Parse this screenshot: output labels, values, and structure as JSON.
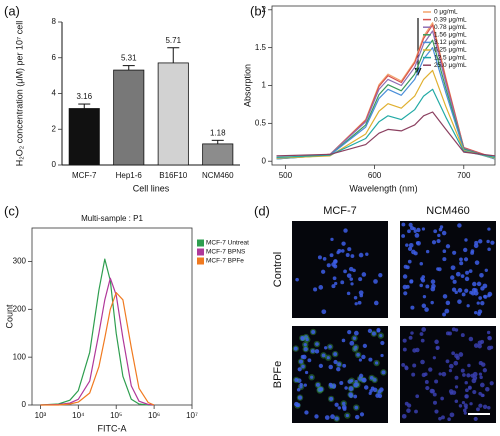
{
  "chart_data": [
    {
      "type": "bar",
      "panel_label": "(a)",
      "categories": [
        "MCF-7",
        "Hep1-6",
        "B16F10",
        "NCM460"
      ],
      "values": [
        3.16,
        5.31,
        5.71,
        1.18
      ],
      "errors": [
        0.25,
        0.25,
        0.85,
        0.2
      ],
      "colors": [
        "#111111",
        "#787878",
        "#d2d2d2",
        "#8c8c8c"
      ],
      "ylim": [
        0,
        8
      ],
      "yticks": [
        0,
        2,
        4,
        6,
        8
      ],
      "xlabel": "Cell lines",
      "ylabel": "H₂O₂ concentration (μM) per 10⁷ cell",
      "frame": "axes"
    },
    {
      "type": "line",
      "panel_label": "(b)",
      "x": [
        490,
        550,
        590,
        605,
        615,
        630,
        645,
        655,
        665,
        680,
        700,
        735
      ],
      "series": [
        {
          "name": "0 μg/mL",
          "color": "#f2a36b",
          "values": [
            0.04,
            0.09,
            0.55,
            1.01,
            1.15,
            1.06,
            1.32,
            1.65,
            1.83,
            1.1,
            0.18,
            0.04
          ]
        },
        {
          "name": "0.39 μg/mL",
          "color": "#d9534f",
          "values": [
            0.04,
            0.09,
            0.54,
            0.99,
            1.13,
            1.04,
            1.3,
            1.62,
            1.8,
            1.08,
            0.18,
            0.04
          ]
        },
        {
          "name": "0.78 μg/mL",
          "color": "#8e6fb5",
          "values": [
            0.03,
            0.09,
            0.52,
            0.95,
            1.08,
            1.0,
            1.24,
            1.55,
            1.72,
            1.03,
            0.17,
            0.03
          ]
        },
        {
          "name": "1.56 μg/mL",
          "color": "#3a9a5b",
          "values": [
            0.03,
            0.08,
            0.48,
            0.88,
            1.01,
            0.93,
            1.15,
            1.44,
            1.6,
            0.96,
            0.16,
            0.03
          ]
        },
        {
          "name": "3.12 μg/mL",
          "color": "#4a8fd9",
          "values": [
            0.03,
            0.08,
            0.45,
            0.83,
            0.95,
            0.87,
            1.08,
            1.35,
            1.5,
            0.9,
            0.15,
            0.03
          ]
        },
        {
          "name": "6.25 μg/mL",
          "color": "#e0b030",
          "values": [
            0.04,
            0.07,
            0.36,
            0.66,
            0.76,
            0.7,
            0.86,
            1.08,
            1.2,
            0.72,
            0.14,
            0.04
          ]
        },
        {
          "name": "12.5 μg/mL",
          "color": "#22aaa5",
          "values": [
            0.05,
            0.08,
            0.3,
            0.52,
            0.6,
            0.55,
            0.68,
            0.86,
            0.95,
            0.58,
            0.13,
            0.05
          ]
        },
        {
          "name": "25.0 μg/mL",
          "color": "#8b4060",
          "values": [
            0.07,
            0.09,
            0.22,
            0.37,
            0.42,
            0.4,
            0.48,
            0.6,
            0.65,
            0.42,
            0.12,
            0.07
          ]
        }
      ],
      "xlim": [
        485,
        735
      ],
      "xticks": [
        500,
        600,
        700
      ],
      "ylim": [
        -0.05,
        2.05
      ],
      "yticks": [
        0,
        0.5,
        1,
        1.5,
        2
      ],
      "xlabel": "Wavelength (nm)",
      "ylabel": "Absorption",
      "legend": "upper right",
      "frame": "box"
    },
    {
      "type": "line",
      "panel_label": "(c)",
      "title": "Multi-sample : P1",
      "x": [
        1000,
        3000,
        6000,
        10000,
        20000,
        35000,
        50000,
        70000,
        100000,
        150000,
        250000,
        400000,
        700000,
        1000000
      ],
      "series": [
        {
          "name": "MCF-7 Untreat",
          "color": "#2e9e4f",
          "values": [
            0,
            2,
            10,
            30,
            110,
            240,
            305,
            260,
            150,
            60,
            12,
            2,
            0,
            0
          ]
        },
        {
          "name": "MCF-7 BPNS",
          "color": "#b0389a",
          "values": [
            0,
            1,
            4,
            12,
            50,
            150,
            220,
            265,
            230,
            140,
            40,
            8,
            1,
            0
          ]
        },
        {
          "name": "MCF-7 BPFe",
          "color": "#f07a20",
          "values": [
            0,
            0,
            2,
            6,
            25,
            80,
            140,
            200,
            235,
            220,
            120,
            35,
            5,
            0
          ]
        }
      ],
      "xscale": "log",
      "xlim": [
        600,
        10000000
      ],
      "xticks": [
        {
          "value": 1000,
          "label": "10³"
        },
        {
          "value": 10000,
          "label": "10⁴"
        },
        {
          "value": 100000,
          "label": "10⁵"
        },
        {
          "value": 1000000,
          "label": "10⁶"
        },
        {
          "value": 10000000,
          "label": "10⁷"
        }
      ],
      "ylim": [
        0,
        370
      ],
      "yticks": [
        0,
        100,
        200,
        300
      ],
      "xlabel": "FITC-A",
      "ylabel": "Count",
      "legend": "right",
      "frame": "box"
    }
  ],
  "microscopy": {
    "panel_label": "(d)",
    "columns": [
      "MCF-7",
      "NCM460"
    ],
    "rows": [
      "Control",
      "BPFe"
    ]
  }
}
